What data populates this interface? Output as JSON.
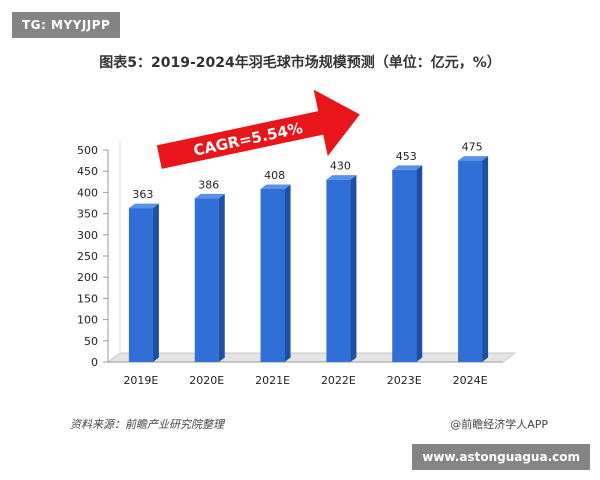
{
  "watermark_top": "TG: MYYJJPP",
  "watermark_bottom": "www.astonguagua.com",
  "source_text": "资料来源：前瞻产业研究院整理",
  "brand_text": "@前瞻经济学人APP",
  "colors": {
    "bar": "#2f6fd6",
    "bar_side": "#1c4fa6",
    "bar_top": "#5a90e8",
    "arrow": "#e8151b"
  },
  "chart_data": {
    "type": "bar",
    "title": "图表5：2019-2024年羽毛球市场规模预测（单位：亿元，%）",
    "categories": [
      "2019E",
      "2020E",
      "2021E",
      "2022E",
      "2023E",
      "2024E"
    ],
    "values": [
      363,
      386,
      408,
      430,
      453,
      475
    ],
    "ylim": [
      0,
      500
    ],
    "yticks": [
      0,
      50,
      100,
      150,
      200,
      250,
      300,
      350,
      400,
      450,
      500
    ],
    "annotation": "CAGR=5.54%",
    "grid": false,
    "style": "3d"
  }
}
